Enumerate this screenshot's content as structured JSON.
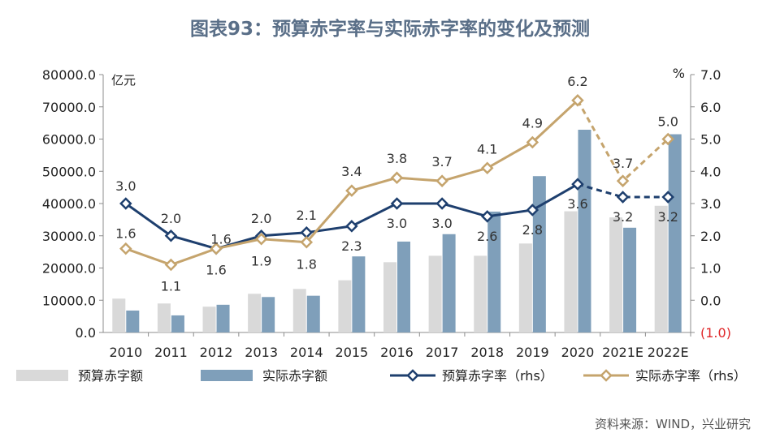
{
  "title": "图表93：预算赤字率与实际赤字率的变化及预测",
  "source": "资料来源：WIND，兴业研究",
  "chart_data": {
    "type": "bar",
    "categories": [
      "2010",
      "2011",
      "2012",
      "2013",
      "2014",
      "2015",
      "2016",
      "2017",
      "2018",
      "2019",
      "2020",
      "2021E",
      "2022E"
    ],
    "left_axis": {
      "unit": "亿元",
      "ylim": [
        0,
        80000
      ],
      "ticks": [
        0,
        10000,
        20000,
        30000,
        40000,
        50000,
        60000,
        70000,
        80000
      ],
      "tick_labels": [
        "0.0",
        "10000.0",
        "20000.0",
        "30000.0",
        "40000.0",
        "50000.0",
        "60000.0",
        "70000.0",
        "80000.0"
      ]
    },
    "right_axis": {
      "unit": "%",
      "ylim": [
        -1,
        7
      ],
      "ticks": [
        -1,
        0,
        1,
        2,
        3,
        4,
        5,
        6,
        7
      ],
      "tick_labels": [
        "(1.0)",
        "0.0",
        "1.0",
        "2.0",
        "3.0",
        "4.0",
        "5.0",
        "6.0",
        "7.0"
      ]
    },
    "series": [
      {
        "name": "预算赤字额",
        "kind": "bar",
        "axis": "left",
        "color": "#d9d9d9",
        "values": [
          10500,
          9000,
          8000,
          12000,
          13500,
          16200,
          21800,
          23800,
          23800,
          27600,
          37600,
          35700,
          39300
        ]
      },
      {
        "name": "实际赤字额",
        "kind": "bar",
        "axis": "left",
        "color": "#7f9fba",
        "values": [
          6800,
          5300,
          8600,
          11000,
          11400,
          23600,
          28200,
          30500,
          37500,
          48500,
          62900,
          32500,
          61500
        ]
      },
      {
        "name": "预算赤字率（rhs）",
        "kind": "line",
        "axis": "right",
        "color": "#1e3f6e",
        "values": [
          3.0,
          2.0,
          1.6,
          2.0,
          2.1,
          2.3,
          3.0,
          3.0,
          2.6,
          2.8,
          3.6,
          3.2,
          3.2
        ],
        "labels": [
          "3.0",
          "2.0",
          "1.6",
          "2.0",
          "2.1",
          "2.3",
          "3.0",
          "3.0",
          "2.6",
          "2.8",
          "3.6",
          "3.2",
          "3.2"
        ],
        "dashed_from": 10
      },
      {
        "name": "实际赤字率（rhs）",
        "kind": "line",
        "axis": "right",
        "color": "#c5a46d",
        "values": [
          1.6,
          1.1,
          1.6,
          1.9,
          1.8,
          3.4,
          3.8,
          3.7,
          4.1,
          4.9,
          6.2,
          3.7,
          5.0
        ],
        "labels": [
          "1.6",
          "1.1",
          "1.6",
          "1.9",
          "1.8",
          "3.4",
          "3.8",
          "3.7",
          "4.1",
          "4.9",
          "6.2",
          "3.7",
          "5.0"
        ],
        "dashed_from": 10
      }
    ],
    "legend_position": "bottom",
    "grid": false
  }
}
